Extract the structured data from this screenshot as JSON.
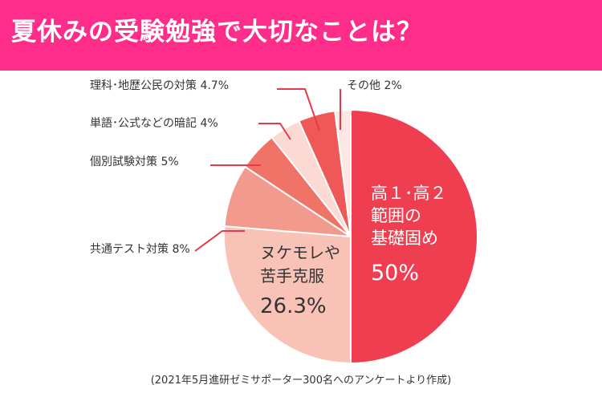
{
  "header": {
    "title": "夏休みの受験勉強で大切なことは？"
  },
  "footnote": "(2021年5月進研ゼミサポーター300名へのアンケートより作成)",
  "colors": {
    "header_bg": "#ff2d8a",
    "slices": [
      "#ef3e4f",
      "#f8c2b6",
      "#f39a8e",
      "#ef7367",
      "#fcdad3",
      "#ee5958",
      "#fde7e3"
    ]
  },
  "chart_data": {
    "type": "pie",
    "title": "夏休みの受験勉強で大切なことは？",
    "start": "top",
    "direction": "clockwise",
    "slices": [
      {
        "label_lines": [
          "高１･高２",
          "範囲の",
          "基礎固め"
        ],
        "value_label": "50%",
        "value": 50
      },
      {
        "label_lines": [
          "ヌケモレや",
          "苦手克服"
        ],
        "value_label": "26.3%",
        "value": 26.3
      },
      {
        "label": "共通テスト対策",
        "value_label": "8%",
        "value": 8
      },
      {
        "label": "個別試験対策",
        "value_label": "5%",
        "value": 5
      },
      {
        "label": "単語･公式などの暗記",
        "value_label": "4%",
        "value": 4
      },
      {
        "label": "理科･地歴公民の対策",
        "value_label": "4.7%",
        "value": 4.7
      },
      {
        "label": "その他",
        "value_label": "2%",
        "value": 2
      }
    ]
  }
}
